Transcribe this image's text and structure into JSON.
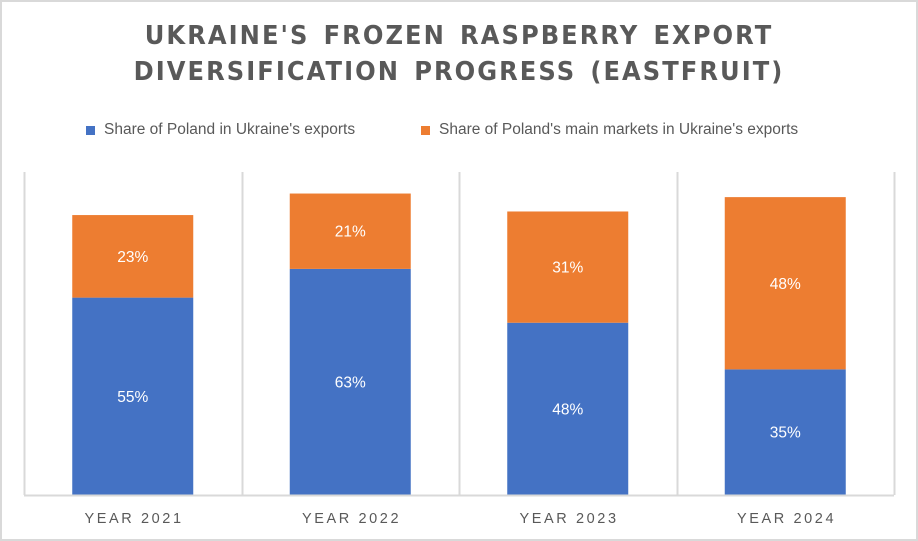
{
  "chart_data": {
    "type": "bar",
    "stacked": true,
    "title": "UKRAINE'S FROZEN RASPBERRY EXPORT DIVERSIFICATION PROGRESS (EASTFRUIT)",
    "title_lines": [
      "UKRAINE'S FROZEN RASPBERRY EXPORT",
      "DIVERSIFICATION PROGRESS (EASTFRUIT)"
    ],
    "categories": [
      "YEAR 2021",
      "YEAR 2022",
      "YEAR 2023",
      "YEAR 2024"
    ],
    "series": [
      {
        "name": "Share of Poland in Ukraine's exports",
        "color": "#4472C4",
        "values": [
          55,
          63,
          48,
          35
        ],
        "labels": [
          "55%",
          "63%",
          "48%",
          "35%"
        ]
      },
      {
        "name": "Share of Poland's main markets in Ukraine's exports",
        "color": "#ED7D31",
        "values": [
          23,
          21,
          31,
          48
        ],
        "labels": [
          "23%",
          "21%",
          "31%",
          "48%"
        ]
      }
    ],
    "xlabel": "",
    "ylabel": "",
    "ylim": [
      0,
      90
    ],
    "value_unit": "%",
    "y_axis_visible": false,
    "grid": "vertical category separators",
    "legend_position": "top"
  }
}
